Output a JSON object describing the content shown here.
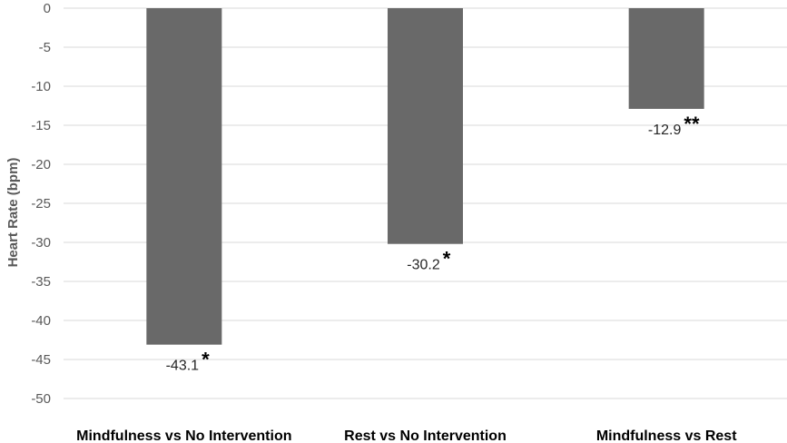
{
  "chart_data": {
    "type": "bar",
    "categories": [
      "Mindfulness vs No Intervention",
      "Rest vs No Intervention",
      "Mindfulness vs Rest"
    ],
    "values": [
      -43.1,
      -30.2,
      -12.9
    ],
    "data_labels": [
      "-43.1",
      "-30.2",
      "-12.9"
    ],
    "significance_marks": [
      "*",
      "*",
      "**"
    ],
    "ylabel": "Heart Rate (bpm)",
    "xlabel": "",
    "title": "",
    "ylim": [
      -50,
      0
    ],
    "yticks": [
      0,
      -5,
      -10,
      -15,
      -20,
      -25,
      -30,
      -35,
      -40,
      -45,
      -50
    ],
    "ytick_labels": [
      "0",
      "-5",
      "-10",
      "-15",
      "-20",
      "-25",
      "-30",
      "-35",
      "-40",
      "-45",
      "-50"
    ],
    "grid": true,
    "legend": "none",
    "colors": {
      "bar": "#696969",
      "grid": "#d9d9d9",
      "tick_text": "#595959"
    }
  }
}
